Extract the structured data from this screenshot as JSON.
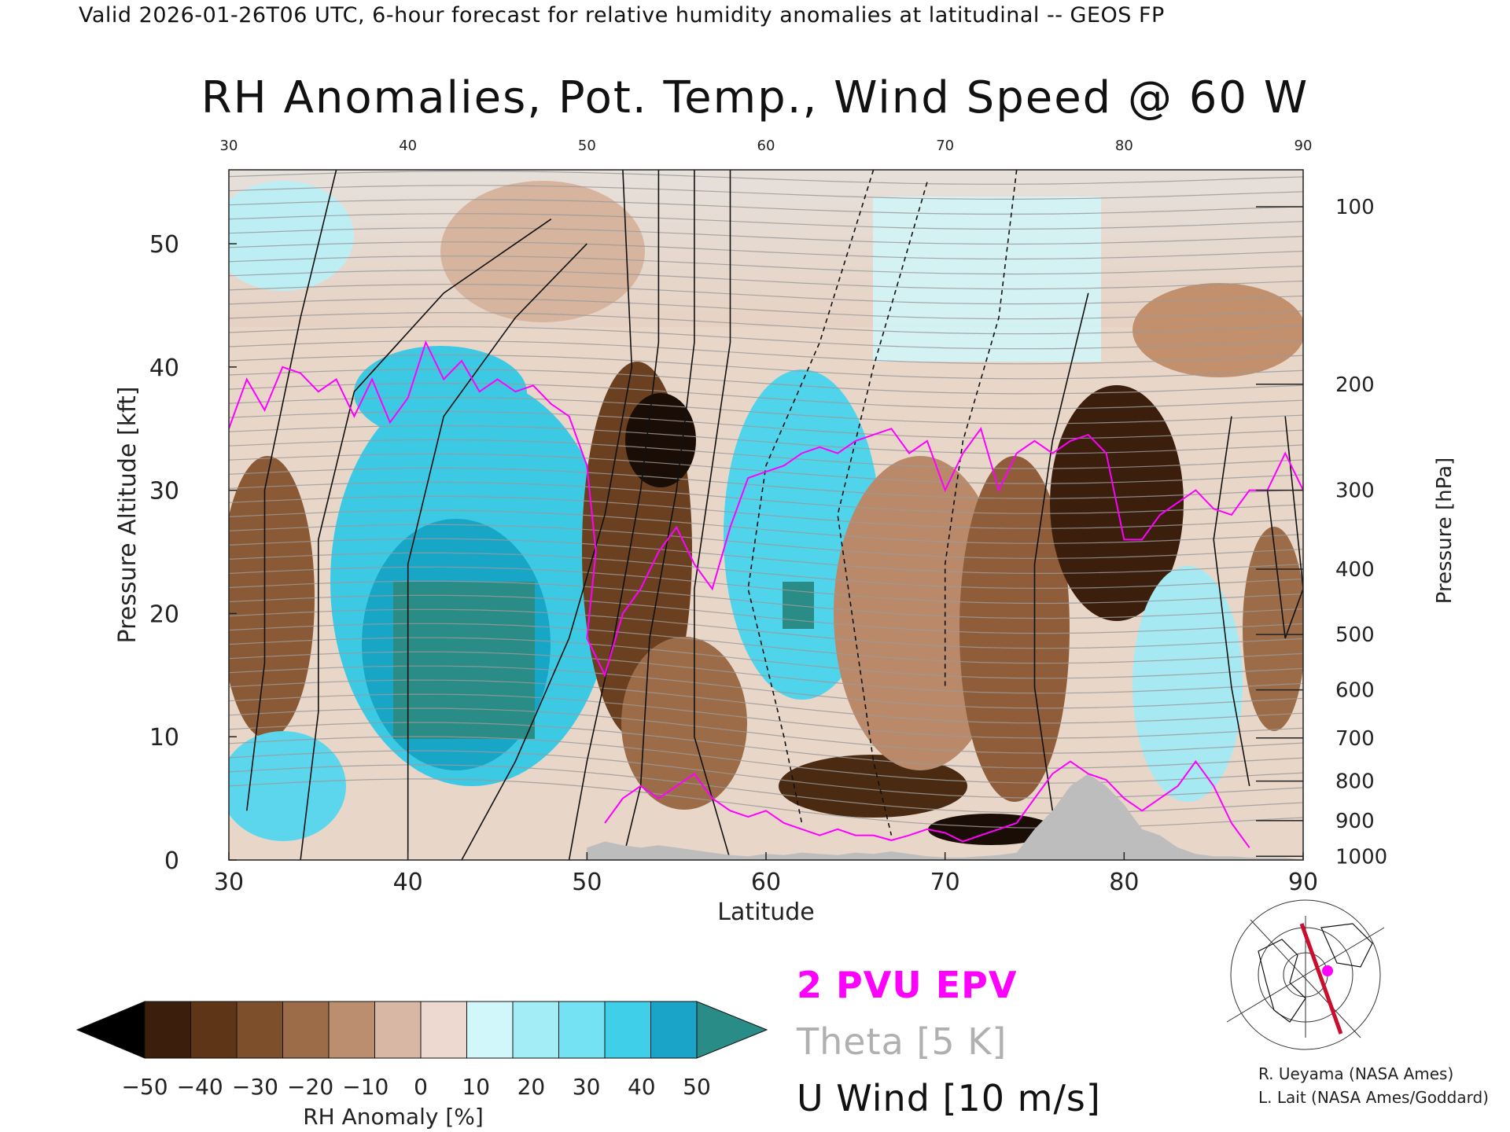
{
  "header": {
    "valid_line": "Valid 2026-01-26T06 UTC, 6-hour forecast for relative humidity anomalies at latitudinal -- GEOS FP"
  },
  "chart_data": {
    "type": "heatmap",
    "title": "RH Anomalies, Pot. Temp., Wind Speed @ 60 W",
    "xlabel": "Latitude",
    "ylabel_left": "Pressure Altitude [kft]",
    "ylabel_right": "Pressure [hPa]",
    "xlim": [
      30,
      90
    ],
    "ylim": [
      0,
      56
    ],
    "x_ticks": [
      "30",
      "40",
      "50",
      "60",
      "70",
      "80",
      "90"
    ],
    "top_x_ticks": [
      "30",
      "40",
      "50",
      "60",
      "70",
      "80",
      "90"
    ],
    "y_ticks": [
      "0",
      "10",
      "20",
      "30",
      "40",
      "50"
    ],
    "pressure_ticks": [
      {
        "label": "100",
        "kft": 53
      },
      {
        "label": "200",
        "kft": 38.6
      },
      {
        "label": "300",
        "kft": 30
      },
      {
        "label": "400",
        "kft": 23.6
      },
      {
        "label": "500",
        "kft": 18.3
      },
      {
        "label": "600",
        "kft": 13.8
      },
      {
        "label": "700",
        "kft": 9.9
      },
      {
        "label": "800",
        "kft": 6.4
      },
      {
        "label": "900",
        "kft": 3.2
      },
      {
        "label": "1000",
        "kft": 0.3
      }
    ],
    "colorbar": {
      "label": "RH Anomaly [%]",
      "ticks": [
        "-50",
        "-40",
        "-30",
        "-20",
        "-10",
        "0",
        "10",
        "20",
        "30",
        "40",
        "50"
      ],
      "colors": [
        "#3b1f0c",
        "#5e3516",
        "#7d4f2b",
        "#9c6c48",
        "#bb8e70",
        "#d8b8a4",
        "#edd9cf",
        "#d2f7fa",
        "#a3eef6",
        "#74e2f2",
        "#3fcfe8",
        "#1aa4c8"
      ],
      "under_color": "#000000",
      "over_color": "#2a8c86"
    },
    "epv_label": "2 PVU EPV",
    "theta_label": "Theta [5 K]",
    "u_label": "U Wind [10 m/s]",
    "epv_color": "#ff00ff",
    "theta_color": "#b0b0b0",
    "terrain_color": "#bdbdbd",
    "epv_line": [
      [
        30,
        35
      ],
      [
        31,
        39
      ],
      [
        32,
        36.5
      ],
      [
        33,
        40
      ],
      [
        34,
        39.5
      ],
      [
        35,
        38
      ],
      [
        36,
        39
      ],
      [
        37,
        36
      ],
      [
        38,
        39
      ],
      [
        39,
        35.5
      ],
      [
        40,
        37.5
      ],
      [
        41,
        42
      ],
      [
        42,
        39
      ],
      [
        43,
        40.5
      ],
      [
        44,
        38
      ],
      [
        45,
        39
      ],
      [
        46,
        38
      ],
      [
        47,
        38.5
      ],
      [
        48,
        37
      ],
      [
        49,
        36
      ],
      [
        50,
        32
      ],
      [
        50.5,
        25
      ],
      [
        50,
        18
      ],
      [
        51,
        15
      ],
      [
        52,
        20
      ],
      [
        53,
        22
      ],
      [
        54,
        25
      ],
      [
        55,
        27
      ],
      [
        56,
        24
      ],
      [
        57,
        22
      ],
      [
        58,
        27
      ],
      [
        59,
        31
      ],
      [
        60,
        31.5
      ],
      [
        61,
        32
      ],
      [
        62,
        33
      ],
      [
        63,
        33.5
      ],
      [
        64,
        33
      ],
      [
        65,
        34
      ],
      [
        66,
        34.5
      ],
      [
        67,
        35
      ],
      [
        68,
        33
      ],
      [
        69,
        34
      ],
      [
        70,
        30
      ],
      [
        71,
        33
      ],
      [
        72,
        35
      ],
      [
        73,
        30
      ],
      [
        74,
        33
      ],
      [
        75,
        34
      ],
      [
        76,
        33
      ],
      [
        77,
        34
      ],
      [
        78,
        34.5
      ],
      [
        79,
        33
      ],
      [
        80,
        26
      ],
      [
        81,
        26
      ],
      [
        82,
        28
      ],
      [
        83,
        29
      ],
      [
        84,
        30
      ],
      [
        85,
        28.5
      ],
      [
        86,
        28
      ],
      [
        87,
        30
      ],
      [
        88,
        30
      ],
      [
        89,
        33
      ],
      [
        90,
        30
      ]
    ],
    "epv_line_low": [
      [
        51,
        3
      ],
      [
        52,
        5
      ],
      [
        53,
        6
      ],
      [
        54,
        5
      ],
      [
        55,
        6
      ],
      [
        56,
        7
      ],
      [
        57,
        5
      ],
      [
        58,
        4
      ],
      [
        59,
        3.5
      ],
      [
        60,
        4
      ],
      [
        61,
        3
      ],
      [
        62,
        2.5
      ],
      [
        63,
        2
      ],
      [
        64,
        2.5
      ],
      [
        65,
        2
      ],
      [
        66,
        2
      ],
      [
        67,
        1.6
      ],
      [
        68,
        2
      ],
      [
        69,
        2.5
      ],
      [
        70,
        2.2
      ],
      [
        71,
        1.5
      ],
      [
        72,
        2
      ],
      [
        73,
        2.5
      ],
      [
        74,
        3
      ],
      [
        75,
        5
      ],
      [
        76,
        7
      ],
      [
        77,
        8
      ],
      [
        78,
        7
      ],
      [
        79,
        6.5
      ],
      [
        80,
        5
      ],
      [
        81,
        4
      ],
      [
        82,
        5
      ],
      [
        83,
        6
      ],
      [
        84,
        8
      ],
      [
        85,
        6
      ],
      [
        86,
        3
      ],
      [
        87,
        1
      ]
    ],
    "terrain": [
      [
        50,
        0
      ],
      [
        50,
        1
      ],
      [
        51,
        1.5
      ],
      [
        52,
        1.2
      ],
      [
        53,
        1
      ],
      [
        54,
        1.2
      ],
      [
        55,
        1
      ],
      [
        56,
        0.8
      ],
      [
        57,
        0.6
      ],
      [
        58,
        0.4
      ],
      [
        59,
        0.3
      ],
      [
        60,
        0.5
      ],
      [
        61,
        0.4
      ],
      [
        62,
        0.6
      ],
      [
        63,
        0.5
      ],
      [
        64,
        0.4
      ],
      [
        65,
        0.6
      ],
      [
        66,
        0.5
      ],
      [
        67,
        0.7
      ],
      [
        68,
        0.5
      ],
      [
        69,
        0.3
      ],
      [
        70,
        0.2
      ],
      [
        71,
        0.2
      ],
      [
        72,
        0.3
      ],
      [
        73,
        0.4
      ],
      [
        74,
        0.6
      ],
      [
        75,
        2.5
      ],
      [
        76,
        4
      ],
      [
        77,
        6
      ],
      [
        78,
        7
      ],
      [
        79,
        6
      ],
      [
        80,
        4.5
      ],
      [
        81,
        2.5
      ],
      [
        82,
        2
      ],
      [
        83,
        1
      ],
      [
        84,
        0.5
      ],
      [
        85,
        0.3
      ],
      [
        86,
        0.3
      ],
      [
        87,
        0.2
      ],
      [
        88,
        0.2
      ],
      [
        89,
        0.2
      ],
      [
        90,
        0
      ]
    ]
  },
  "credits": {
    "line1": "R. Ueyama (NASA Ames)",
    "line2": "L. Lait (NASA Ames/Goddard)"
  }
}
